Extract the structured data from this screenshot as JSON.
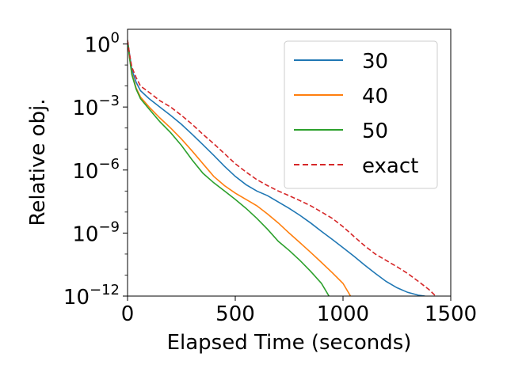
{
  "chart_data": {
    "type": "line",
    "title": "",
    "xlabel": "Elapsed Time (seconds)",
    "ylabel": "Relative obj.",
    "xlim": [
      0,
      1500
    ],
    "ylim": [
      1e-12,
      5
    ],
    "yscale": "log",
    "grid": false,
    "legend_position": "top-right",
    "x_ticks": [
      {
        "value": 0,
        "label": "0"
      },
      {
        "value": 500,
        "label": "500"
      },
      {
        "value": 1000,
        "label": "1000"
      },
      {
        "value": 1500,
        "label": "1500"
      }
    ],
    "y_ticks": [
      {
        "exp": 0,
        "base": "10",
        "sup": "0"
      },
      {
        "exp": -3,
        "base": "10",
        "sup": "−3"
      },
      {
        "exp": -6,
        "base": "10",
        "sup": "−6"
      },
      {
        "exp": -9,
        "base": "10",
        "sup": "−9"
      },
      {
        "exp": -12,
        "base": "10",
        "sup": "−12"
      }
    ],
    "series": [
      {
        "name": "30",
        "color": "#1f77b4",
        "dash": "solid",
        "points": [
          [
            0,
            1.5
          ],
          [
            10,
            0.3
          ],
          [
            20,
            0.06
          ],
          [
            40,
            0.015
          ],
          [
            60,
            0.006
          ],
          [
            100,
            0.0025
          ],
          [
            150,
            0.001
          ],
          [
            200,
            0.0004
          ],
          [
            250,
            0.00015
          ],
          [
            300,
            5e-05
          ],
          [
            350,
            1.6e-05
          ],
          [
            400,
            5e-06
          ],
          [
            450,
            1.5e-06
          ],
          [
            500,
            5e-07
          ],
          [
            550,
            2e-07
          ],
          [
            600,
            1e-07
          ],
          [
            650,
            6e-08
          ],
          [
            700,
            3e-08
          ],
          [
            750,
            1.5e-08
          ],
          [
            800,
            7e-09
          ],
          [
            850,
            3e-09
          ],
          [
            900,
            1.2e-09
          ],
          [
            950,
            5e-10
          ],
          [
            1000,
            2e-10
          ],
          [
            1050,
            8e-11
          ],
          [
            1100,
            3e-11
          ],
          [
            1150,
            1.2e-11
          ],
          [
            1200,
            5e-12
          ],
          [
            1250,
            2.5e-12
          ],
          [
            1300,
            1.5e-12
          ],
          [
            1350,
            1.1e-12
          ],
          [
            1380,
            1e-12
          ]
        ]
      },
      {
        "name": "40",
        "color": "#ff7f0e",
        "dash": "solid",
        "points": [
          [
            0,
            1.5
          ],
          [
            10,
            0.2
          ],
          [
            20,
            0.04
          ],
          [
            40,
            0.008
          ],
          [
            60,
            0.003
          ],
          [
            100,
            0.001
          ],
          [
            150,
            0.0003
          ],
          [
            200,
            0.0001
          ],
          [
            250,
            3e-05
          ],
          [
            300,
            8e-06
          ],
          [
            350,
            2e-06
          ],
          [
            400,
            5e-07
          ],
          [
            450,
            1.8e-07
          ],
          [
            500,
            8e-08
          ],
          [
            550,
            4e-08
          ],
          [
            600,
            2e-08
          ],
          [
            650,
            8e-09
          ],
          [
            700,
            3e-09
          ],
          [
            750,
            1e-09
          ],
          [
            800,
            3.5e-10
          ],
          [
            850,
            1.2e-10
          ],
          [
            900,
            4e-11
          ],
          [
            950,
            1.3e-11
          ],
          [
            1000,
            4e-12
          ],
          [
            1035,
            1e-12
          ]
        ]
      },
      {
        "name": "50",
        "color": "#2ca02c",
        "dash": "solid",
        "points": [
          [
            0,
            1.5
          ],
          [
            10,
            0.2
          ],
          [
            20,
            0.035
          ],
          [
            40,
            0.007
          ],
          [
            60,
            0.0025
          ],
          [
            100,
            0.0008
          ],
          [
            150,
            0.0002
          ],
          [
            200,
            6e-05
          ],
          [
            250,
            1.5e-05
          ],
          [
            300,
            3e-06
          ],
          [
            350,
            7e-07
          ],
          [
            400,
            2.5e-07
          ],
          [
            450,
            1e-07
          ],
          [
            500,
            4e-08
          ],
          [
            550,
            1.5e-08
          ],
          [
            600,
            5e-09
          ],
          [
            650,
            1.5e-09
          ],
          [
            700,
            4e-10
          ],
          [
            750,
            1.5e-10
          ],
          [
            800,
            5e-11
          ],
          [
            850,
            1.5e-11
          ],
          [
            900,
            4e-12
          ],
          [
            935,
            1e-12
          ]
        ]
      },
      {
        "name": "exact",
        "color": "#d62728",
        "dash": "dashed",
        "points": [
          [
            0,
            1.5
          ],
          [
            10,
            0.3
          ],
          [
            20,
            0.08
          ],
          [
            40,
            0.025
          ],
          [
            60,
            0.01
          ],
          [
            100,
            0.005
          ],
          [
            150,
            0.002
          ],
          [
            200,
            0.001
          ],
          [
            250,
            0.0004
          ],
          [
            300,
            0.00015
          ],
          [
            350,
            5e-05
          ],
          [
            400,
            1.8e-05
          ],
          [
            450,
            6e-06
          ],
          [
            500,
            2e-06
          ],
          [
            550,
            8e-07
          ],
          [
            600,
            3.5e-07
          ],
          [
            650,
            1.8e-07
          ],
          [
            700,
            1e-07
          ],
          [
            750,
            6e-08
          ],
          [
            800,
            3.5e-08
          ],
          [
            850,
            2e-08
          ],
          [
            900,
            1e-08
          ],
          [
            950,
            5e-09
          ],
          [
            1000,
            2e-09
          ],
          [
            1050,
            7e-10
          ],
          [
            1100,
            2.5e-10
          ],
          [
            1150,
            1e-10
          ],
          [
            1200,
            5e-11
          ],
          [
            1250,
            2.5e-11
          ],
          [
            1300,
            1.2e-11
          ],
          [
            1350,
            5e-12
          ],
          [
            1400,
            2e-12
          ],
          [
            1430,
            1e-12
          ]
        ]
      }
    ]
  }
}
